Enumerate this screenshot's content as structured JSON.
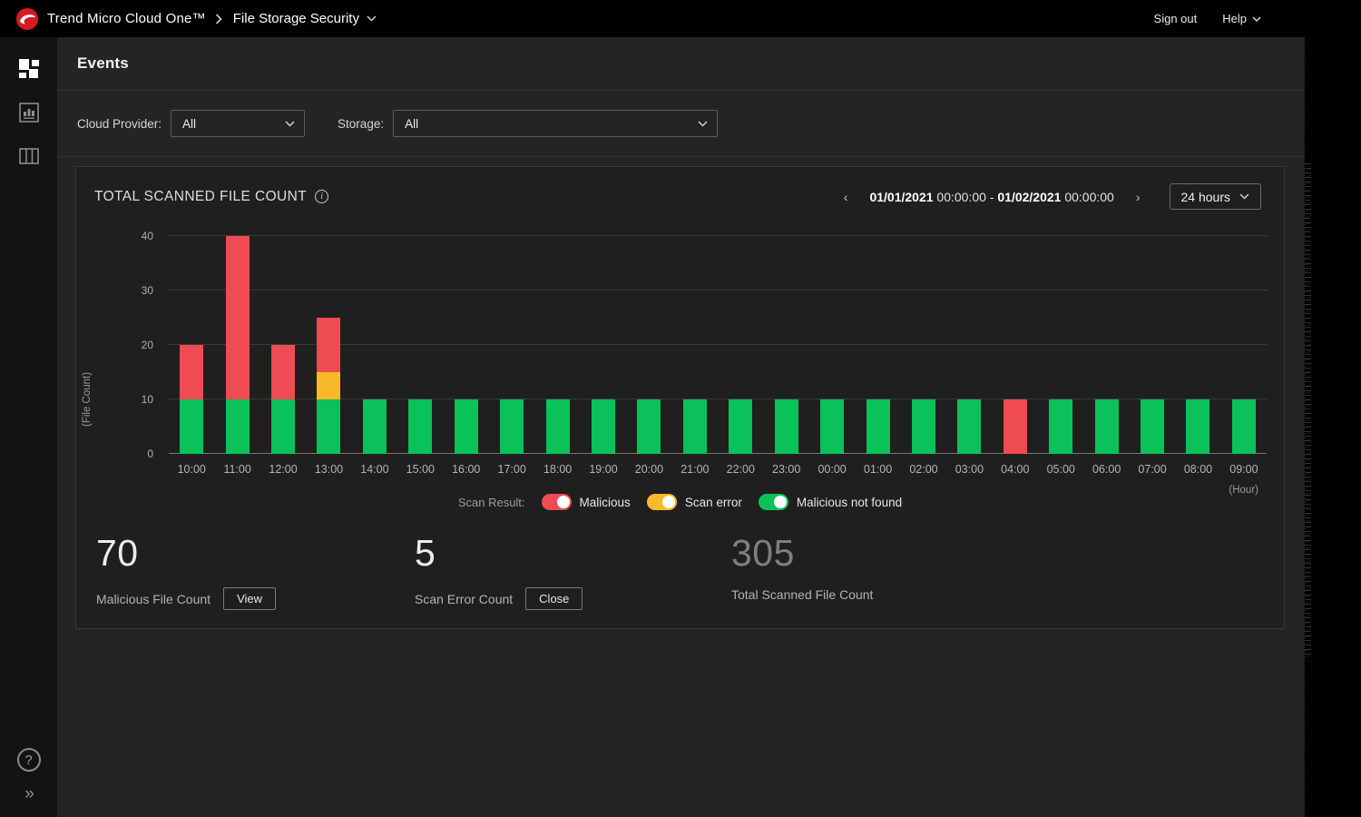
{
  "topbar": {
    "brand": "Trend Micro Cloud One™",
    "product": "File Storage Security",
    "sign_out": "Sign out",
    "help": "Help",
    "logo_color": "#d71920"
  },
  "sidebar": {
    "icons": [
      "dashboard-tiles-icon",
      "bar-chart-icon",
      "columns-icon",
      "help-circle-icon",
      "expand-chevrons-icon"
    ],
    "help_glyph": "?",
    "expand_glyph": "»"
  },
  "page": {
    "title": "Events"
  },
  "filters": {
    "cloud_provider_label": "Cloud Provider:",
    "cloud_provider_value": "All",
    "storage_label": "Storage:",
    "storage_value": "All"
  },
  "panel": {
    "title": "TOTAL SCANNED FILE COUNT",
    "info_glyph": "i",
    "range": {
      "start_date": "01/01/2021",
      "start_time": "00:00:00",
      "dash": "-",
      "end_date": "01/02/2021",
      "end_time": "00:00:00"
    },
    "prev_glyph": "‹",
    "next_glyph": "›",
    "interval": "24 hours"
  },
  "chart_data": {
    "type": "bar",
    "stacked": true,
    "title": "TOTAL SCANNED FILE COUNT",
    "categories": [
      "10:00",
      "11:00",
      "12:00",
      "13:00",
      "14:00",
      "15:00",
      "16:00",
      "17:00",
      "18:00",
      "19:00",
      "20:00",
      "21:00",
      "22:00",
      "23:00",
      "00:00",
      "01:00",
      "02:00",
      "03:00",
      "04:00",
      "05:00",
      "06:00",
      "07:00",
      "08:00",
      "09:00"
    ],
    "series": [
      {
        "name": "Malicious not found",
        "color": "#0bc159",
        "values": [
          10,
          10,
          10,
          10,
          10,
          10,
          10,
          10,
          10,
          10,
          10,
          10,
          10,
          10,
          10,
          10,
          10,
          10,
          0,
          10,
          10,
          10,
          10,
          10
        ]
      },
      {
        "name": "Scan error",
        "color": "#f9ba2a",
        "values": [
          0,
          0,
          0,
          5,
          0,
          0,
          0,
          0,
          0,
          0,
          0,
          0,
          0,
          0,
          0,
          0,
          0,
          0,
          0,
          0,
          0,
          0,
          0,
          0
        ]
      },
      {
        "name": "Malicious",
        "color": "#ef4b53",
        "values": [
          10,
          30,
          10,
          10,
          0,
          0,
          0,
          0,
          0,
          0,
          0,
          0,
          0,
          0,
          0,
          0,
          0,
          0,
          10,
          0,
          0,
          0,
          0,
          0
        ]
      }
    ],
    "xlabel": "(Hour)",
    "ylabel": "(File Count)",
    "ylim": [
      0,
      40
    ],
    "yticks": [
      0,
      10,
      20,
      30,
      40
    ],
    "grid": true,
    "legend_position": "bottom"
  },
  "legend": {
    "label": "Scan Result:",
    "items": [
      {
        "label": "Malicious",
        "color": "#ef4b53"
      },
      {
        "label": "Scan error",
        "color": "#f9ba2a"
      },
      {
        "label": "Malicious not found",
        "color": "#0bc159"
      }
    ]
  },
  "stats": [
    {
      "value": "70",
      "label": "Malicious File Count",
      "button": "View",
      "dim": false
    },
    {
      "value": "5",
      "label": "Scan Error Count",
      "button": "Close",
      "dim": false
    },
    {
      "value": "305",
      "label": "Total Scanned File Count",
      "button": null,
      "dim": true
    }
  ],
  "colors": {
    "malicious": "#ef4b53",
    "scan_error": "#f9ba2a",
    "not_found": "#0bc159",
    "topbar_bg": "#000000",
    "card_bg": "#1f1f1f",
    "main_bg": "#242424"
  }
}
